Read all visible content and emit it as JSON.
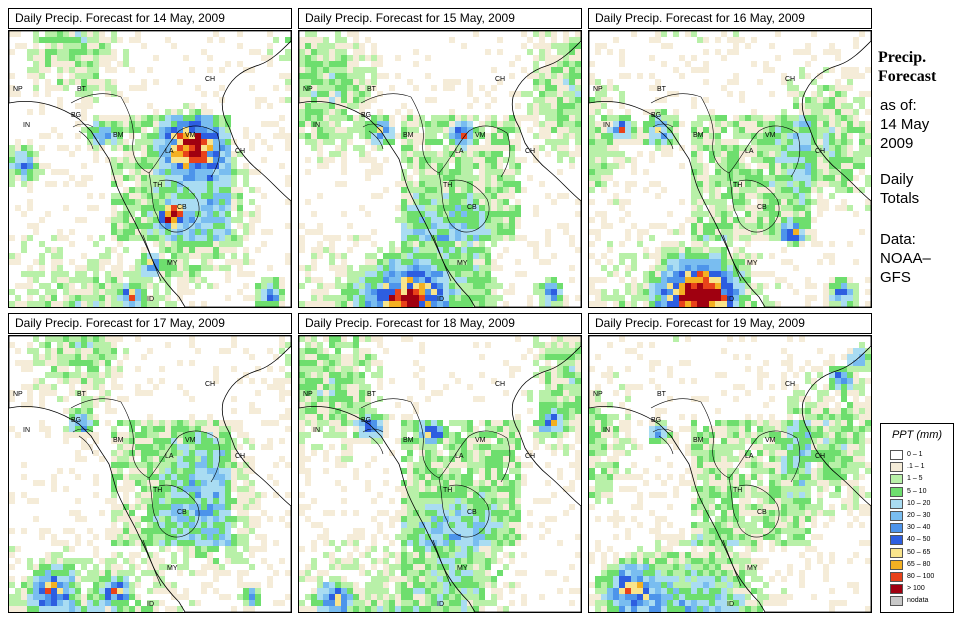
{
  "panels": [
    {
      "title": "Daily Precip. Forecast for  14 May, 2009"
    },
    {
      "title": "Daily Precip. Forecast for  15 May, 2009"
    },
    {
      "title": "Daily Precip. Forecast for  16 May, 2009"
    },
    {
      "title": "Daily Precip. Forecast for  17 May, 2009"
    },
    {
      "title": "Daily Precip. Forecast for  18 May, 2009"
    },
    {
      "title": "Daily Precip. Forecast for  19 May, 2009"
    }
  ],
  "map_labels": [
    "NP",
    "BT",
    "BG",
    "IN",
    "BM",
    "CH",
    "VM",
    "LA",
    "TH",
    "CB",
    "MY",
    "ID"
  ],
  "sidebar": {
    "title_line1": "Precip.",
    "title_line2": "Forecast",
    "asof_label": "as of:",
    "asof_date_line1": "14 May",
    "asof_date_line2": "2009",
    "totals_line1": "Daily",
    "totals_line2": "Totals",
    "source_line1": "Data:",
    "source_line2": "NOAA–",
    "source_line3": "GFS"
  },
  "legend": {
    "title": "PPT (mm)",
    "items": [
      {
        "label": "0 – 1",
        "color": "#ffffff"
      },
      {
        "label": ".1 – 1",
        "color": "#f5ecd8"
      },
      {
        "label": "1 – 5",
        "color": "#b8f0a8"
      },
      {
        "label": "5 – 10",
        "color": "#6ede6e"
      },
      {
        "label": "10 – 20",
        "color": "#a9dcf2"
      },
      {
        "label": "20 – 30",
        "color": "#79bdf0"
      },
      {
        "label": "30 – 40",
        "color": "#4d94ea"
      },
      {
        "label": "40 – 50",
        "color": "#2d5ee0"
      },
      {
        "label": "50 – 65",
        "color": "#f8e48c"
      },
      {
        "label": "65 – 80",
        "color": "#f4b022"
      },
      {
        "label": "80 – 100",
        "color": "#e8421a"
      },
      {
        "label": "> 100",
        "color": "#a00010"
      },
      {
        "label": "nodata",
        "color": "#c8c8c8"
      }
    ]
  }
}
